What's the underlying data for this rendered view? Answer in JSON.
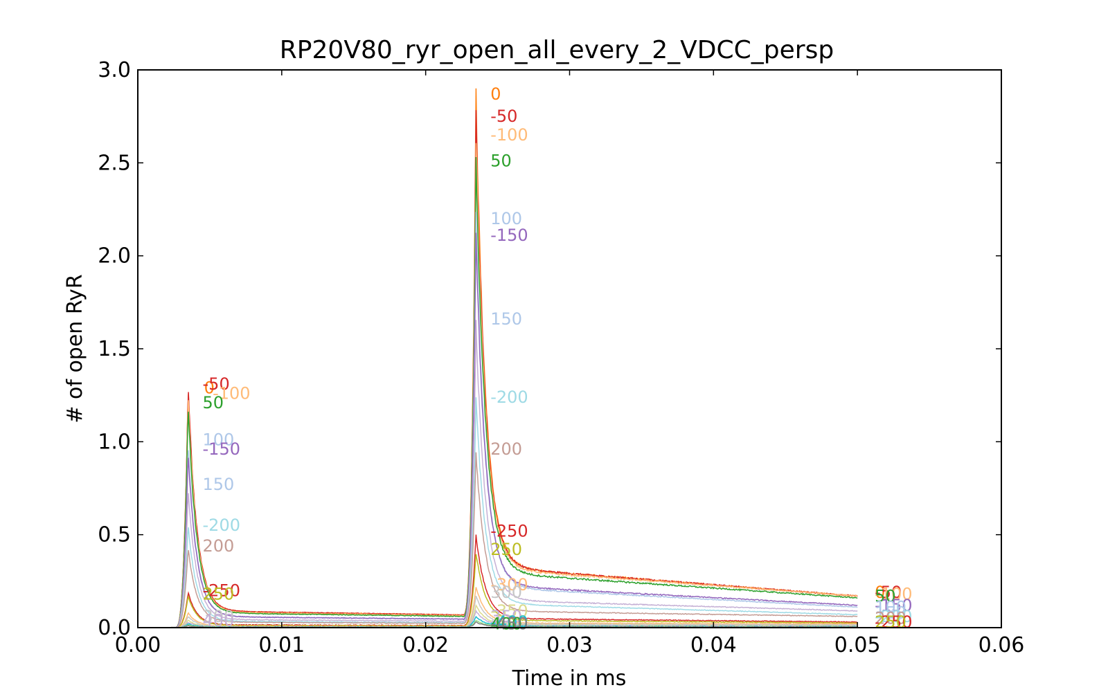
{
  "chart_data": {
    "type": "line",
    "title": "RP20V80_ryr_open_all_every_2_VDCC_persp",
    "xlabel": "Time in ms",
    "ylabel": "# of open RyR",
    "xlim": [
      0.0,
      0.06
    ],
    "ylim": [
      0.0,
      3.0
    ],
    "x_ticks": [
      "0.00",
      "0.01",
      "0.02",
      "0.03",
      "0.04",
      "0.05",
      "0.06"
    ],
    "y_ticks": [
      "0.0",
      "0.5",
      "1.0",
      "1.5",
      "2.0",
      "2.5",
      "3.0"
    ],
    "grid": false,
    "legend": "none (inline labels)",
    "pulse1_time": 0.0035,
    "pulse2_time": 0.0235,
    "x_end": 0.05,
    "series": [
      {
        "name": "0",
        "color": "#ff7f0e",
        "peak1": 1.3,
        "peak2": 2.87,
        "plateau1": 0.09,
        "plateau2": 0.33,
        "end": 0.17
      },
      {
        "name": "-50",
        "color": "#d62728",
        "peak1": 1.3,
        "peak2": 2.75,
        "plateau1": 0.09,
        "plateau2": 0.33,
        "end": 0.17
      },
      {
        "name": "-100",
        "color": "#ffbb78",
        "peak1": 1.25,
        "peak2": 2.65,
        "plateau1": 0.085,
        "plateau2": 0.32,
        "end": 0.17
      },
      {
        "name": "50",
        "color": "#2ca02c",
        "peak1": 1.19,
        "peak2": 2.53,
        "plateau1": 0.08,
        "plateau2": 0.3,
        "end": 0.16
      },
      {
        "name": "100",
        "color": "#aec7e8",
        "peak1": 0.98,
        "peak2": 2.21,
        "plateau1": 0.06,
        "plateau2": 0.22,
        "end": 0.11
      },
      {
        "name": "-150",
        "color": "#9467bd",
        "peak1": 0.94,
        "peak2": 2.1,
        "plateau1": 0.06,
        "plateau2": 0.23,
        "end": 0.12
      },
      {
        "name": "150",
        "color": "#c5b0d5",
        "peak1": 0.74,
        "peak2": 1.63,
        "plateau1": 0.045,
        "plateau2": 0.15,
        "end": 0.09
      },
      {
        "name": "-200",
        "color": "#9edae5",
        "peak1": 0.55,
        "peak2": 1.23,
        "plateau1": 0.035,
        "plateau2": 0.13,
        "end": 0.07
      },
      {
        "name": "200",
        "color": "#c49c94",
        "peak1": 0.43,
        "peak2": 0.94,
        "plateau1": 0.03,
        "plateau2": 0.09,
        "end": 0.06
      },
      {
        "name": "-250",
        "color": "#d62728",
        "peak1": 0.19,
        "peak2": 0.5,
        "plateau1": 0.015,
        "plateau2": 0.05,
        "end": 0.03
      },
      {
        "name": "250",
        "color": "#bcbd22",
        "peak1": 0.17,
        "peak2": 0.4,
        "plateau1": 0.012,
        "plateau2": 0.04,
        "end": 0.025
      },
      {
        "name": "-300",
        "color": "#ffbb78",
        "peak1": 0.08,
        "peak2": 0.22,
        "plateau1": 0.008,
        "plateau2": 0.025,
        "end": 0.02
      },
      {
        "name": "300",
        "color": "#c7c7c7",
        "peak1": 0.06,
        "peak2": 0.17,
        "plateau1": 0.006,
        "plateau2": 0.02,
        "end": 0.015
      },
      {
        "name": "-350",
        "color": "#dbdb8d",
        "peak1": 0.04,
        "peak2": 0.12,
        "plateau1": 0.005,
        "plateau2": 0.015,
        "end": 0.01
      },
      {
        "name": "350",
        "color": "#c5b0d5",
        "peak1": 0.03,
        "peak2": 0.09,
        "plateau1": 0.004,
        "plateau2": 0.012,
        "end": 0.008
      },
      {
        "name": "-400",
        "color": "#17becf",
        "peak1": 0.02,
        "peak2": 0.06,
        "plateau1": 0.003,
        "plateau2": 0.008,
        "end": 0.005
      },
      {
        "name": "400",
        "color": "#98df8a",
        "peak1": 0.015,
        "peak2": 0.04,
        "plateau1": 0.002,
        "plateau2": 0.006,
        "end": 0.004
      },
      {
        "name": "-450",
        "color": "#7f7f7f",
        "peak1": 0.01,
        "peak2": 0.03,
        "plateau1": 0.002,
        "plateau2": 0.004,
        "end": 0.003
      }
    ],
    "labels_peak1": [
      {
        "text": "0",
        "color": "#ff7f0e",
        "x": 0.0046,
        "y": 1.29
      },
      {
        "text": "-50",
        "color": "#d62728",
        "x": 0.0045,
        "y": 1.31
      },
      {
        "text": "-100",
        "color": "#ffbb78",
        "x": 0.0052,
        "y": 1.26
      },
      {
        "text": "50",
        "color": "#2ca02c",
        "x": 0.0045,
        "y": 1.21
      },
      {
        "text": "100",
        "color": "#aec7e8",
        "x": 0.0045,
        "y": 1.01
      },
      {
        "text": "-150",
        "color": "#9467bd",
        "x": 0.0045,
        "y": 0.96
      },
      {
        "text": "150",
        "color": "#aec7e8",
        "x": 0.0045,
        "y": 0.77
      },
      {
        "text": "-200",
        "color": "#9edae5",
        "x": 0.0045,
        "y": 0.55
      },
      {
        "text": "200",
        "color": "#c49c94",
        "x": 0.0045,
        "y": 0.44
      },
      {
        "text": "-250",
        "color": "#d62728",
        "x": 0.0045,
        "y": 0.2
      },
      {
        "text": "250",
        "color": "#bcbd22",
        "x": 0.0045,
        "y": 0.18
      },
      {
        "text": "300",
        "color": "#c7c7c7",
        "x": 0.0045,
        "y": 0.06
      },
      {
        "text": "400",
        "color": "#c5b0d5",
        "x": 0.0045,
        "y": 0.04
      }
    ],
    "labels_peak2": [
      {
        "text": "0",
        "color": "#ff7f0e",
        "x": 0.0245,
        "y": 2.87
      },
      {
        "text": "-50",
        "color": "#d62728",
        "x": 0.0245,
        "y": 2.75
      },
      {
        "text": "-100",
        "color": "#ffbb78",
        "x": 0.0245,
        "y": 2.65
      },
      {
        "text": "50",
        "color": "#2ca02c",
        "x": 0.0245,
        "y": 2.51
      },
      {
        "text": "100",
        "color": "#aec7e8",
        "x": 0.0245,
        "y": 2.2
      },
      {
        "text": "-150",
        "color": "#9467bd",
        "x": 0.0245,
        "y": 2.11
      },
      {
        "text": "150",
        "color": "#aec7e8",
        "x": 0.0245,
        "y": 1.66
      },
      {
        "text": "-200",
        "color": "#9edae5",
        "x": 0.0245,
        "y": 1.24
      },
      {
        "text": "200",
        "color": "#c49c94",
        "x": 0.0245,
        "y": 0.96
      },
      {
        "text": "-250",
        "color": "#d62728",
        "x": 0.0245,
        "y": 0.52
      },
      {
        "text": "250",
        "color": "#bcbd22",
        "x": 0.0245,
        "y": 0.42
      },
      {
        "text": "-300",
        "color": "#ffbb78",
        "x": 0.0245,
        "y": 0.23
      },
      {
        "text": "300",
        "color": "#c7c7c7",
        "x": 0.0245,
        "y": 0.19
      },
      {
        "text": "-350",
        "color": "#dbdb8d",
        "x": 0.0245,
        "y": 0.09
      },
      {
        "text": "350",
        "color": "#c5b0d5",
        "x": 0.0245,
        "y": 0.06
      },
      {
        "text": "-400",
        "color": "#17becf",
        "x": 0.0245,
        "y": 0.03
      },
      {
        "text": "400",
        "color": "#2ca02c",
        "x": 0.0245,
        "y": 0.02
      },
      {
        "text": "-450",
        "color": "#7f7f7f",
        "x": 0.0245,
        "y": 0.02
      }
    ],
    "labels_end": [
      {
        "text": "0",
        "color": "#ff7f0e",
        "x": 0.0512,
        "y": 0.19
      },
      {
        "text": "-50",
        "color": "#d62728",
        "x": 0.0512,
        "y": 0.19
      },
      {
        "text": "-100",
        "color": "#ffbb78",
        "x": 0.0512,
        "y": 0.18
      },
      {
        "text": "50",
        "color": "#2ca02c",
        "x": 0.0512,
        "y": 0.17
      },
      {
        "text": "-150",
        "color": "#9467bd",
        "x": 0.0512,
        "y": 0.12
      },
      {
        "text": "100",
        "color": "#aec7e8",
        "x": 0.0512,
        "y": 0.11
      },
      {
        "text": "150",
        "color": "#aec7e8",
        "x": 0.0512,
        "y": 0.08
      },
      {
        "text": "-200",
        "color": "#9edae5",
        "x": 0.0512,
        "y": 0.06
      },
      {
        "text": "200",
        "color": "#c49c94",
        "x": 0.0512,
        "y": 0.05
      },
      {
        "text": "-250",
        "color": "#d62728",
        "x": 0.0512,
        "y": 0.03
      },
      {
        "text": "250",
        "color": "#bcbd22",
        "x": 0.0512,
        "y": 0.03
      }
    ]
  }
}
